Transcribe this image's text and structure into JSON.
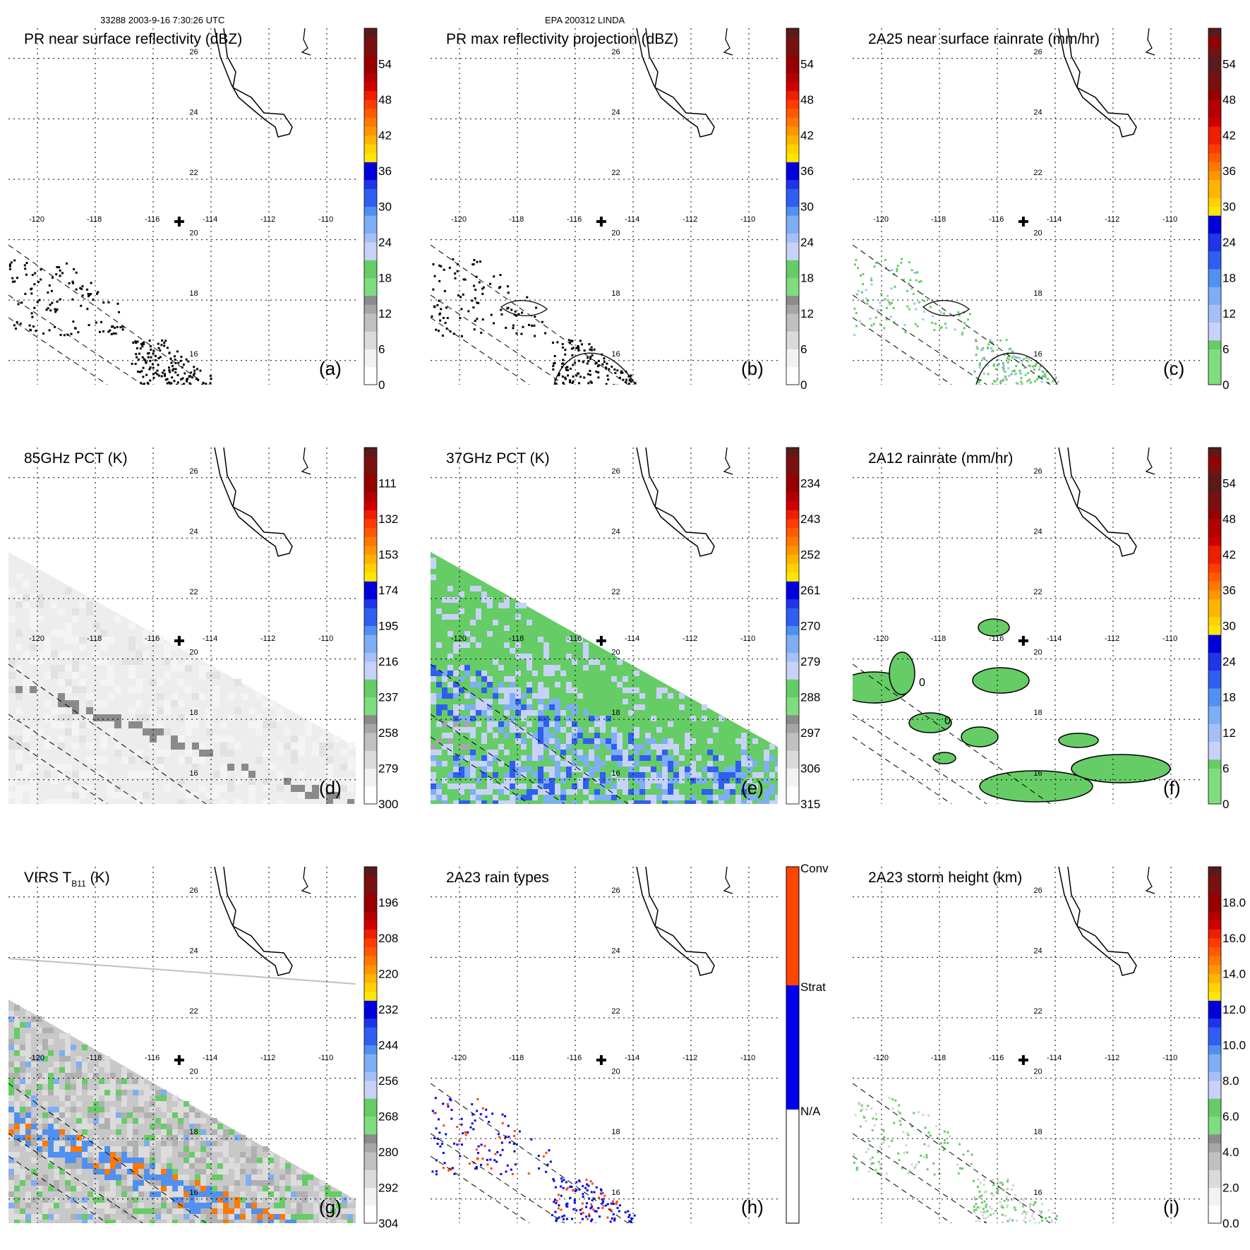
{
  "header": {
    "left": "33288 2003-9-16 7:30:26 UTC",
    "center": "EPA 200312 LINDA"
  },
  "map": {
    "lon_ticks": [
      "-120",
      "-118",
      "-116",
      "-114",
      "-112",
      "-110"
    ],
    "lat_ticks": [
      "26",
      "24",
      "22",
      "20",
      "18",
      "16"
    ]
  },
  "panels": [
    {
      "id": "a",
      "title": "PR near surface reflectivity (dBZ)",
      "letter": "(a)",
      "colorbar": {
        "type": "continuous",
        "ticks": [
          "54",
          "48",
          "42",
          "36",
          "30",
          "24",
          "18",
          "12",
          "6",
          "0"
        ]
      }
    },
    {
      "id": "b",
      "title": "PR max reflectivity projection (dBZ)",
      "letter": "(b)",
      "colorbar": {
        "type": "continuous",
        "ticks": [
          "54",
          "48",
          "42",
          "36",
          "30",
          "24",
          "18",
          "12",
          "6",
          "0"
        ]
      }
    },
    {
      "id": "c",
      "title": "2A25 near surface rainrate (mm/hr)",
      "letter": "(c)",
      "colorbar": {
        "type": "continuous",
        "ticks": [
          "54",
          "48",
          "42",
          "36",
          "30",
          "24",
          "18",
          "12",
          "6",
          "0"
        ]
      }
    },
    {
      "id": "d",
      "title": "85GHz PCT (K)",
      "letter": "(d)",
      "colorbar": {
        "type": "continuous",
        "ticks": [
          "111",
          "132",
          "153",
          "174",
          "195",
          "216",
          "237",
          "258",
          "279",
          "300"
        ]
      }
    },
    {
      "id": "e",
      "title": "37GHz PCT (K)",
      "letter": "(e)",
      "colorbar": {
        "type": "continuous",
        "ticks": [
          "234",
          "243",
          "252",
          "261",
          "270",
          "279",
          "288",
          "297",
          "306",
          "315"
        ]
      }
    },
    {
      "id": "f",
      "title": "2A12 rainrate (mm/hr)",
      "letter": "(f)",
      "colorbar": {
        "type": "continuous",
        "ticks": [
          "54",
          "48",
          "42",
          "36",
          "30",
          "24",
          "18",
          "12",
          "6",
          "0"
        ]
      }
    },
    {
      "id": "g",
      "title": "VIRS T",
      "title_sub": "B11",
      "title_suffix": " (K)",
      "letter": "(g)",
      "colorbar": {
        "type": "continuous",
        "ticks": [
          "196",
          "208",
          "220",
          "232",
          "244",
          "256",
          "268",
          "280",
          "292",
          "304"
        ]
      }
    },
    {
      "id": "h",
      "title": "2A23 rain types",
      "letter": "(h)",
      "colorbar": {
        "type": "categorical",
        "ticks": [
          "Conv",
          "Strat",
          "N/A"
        ]
      }
    },
    {
      "id": "i",
      "title": "2A23 storm height (km)",
      "letter": "(i)",
      "colorbar": {
        "type": "continuous",
        "ticks": [
          "18.0",
          "16.0",
          "14.0",
          "12.0",
          "10.0",
          "8.0",
          "6.0",
          "4.0",
          "2.0",
          "0.0"
        ]
      }
    }
  ],
  "chart_data": [
    {
      "type": "heatmap",
      "panel": "a",
      "title": "PR near surface reflectivity (dBZ)",
      "units": "dBZ",
      "colorbar_range": [
        0,
        60
      ],
      "xlabel": "",
      "ylabel": "",
      "xlim": [
        -121,
        -109
      ],
      "ylim": [
        15.2,
        27
      ]
    },
    {
      "type": "heatmap",
      "panel": "b",
      "title": "PR max reflectivity projection (dBZ)",
      "units": "dBZ",
      "colorbar_range": [
        0,
        60
      ],
      "xlim": [
        -121,
        -109
      ],
      "ylim": [
        15.2,
        27
      ]
    },
    {
      "type": "heatmap",
      "panel": "c",
      "title": "2A25 near surface rainrate (mm/hr)",
      "units": "mm/hr",
      "colorbar_range": [
        0,
        60
      ],
      "xlim": [
        -121,
        -109
      ],
      "ylim": [
        15.2,
        27
      ]
    },
    {
      "type": "heatmap",
      "panel": "d",
      "title": "85GHz PCT (K)",
      "units": "K",
      "colorbar_range": [
        90,
        300
      ],
      "xlim": [
        -121,
        -109
      ],
      "ylim": [
        15.2,
        27
      ]
    },
    {
      "type": "heatmap",
      "panel": "e",
      "title": "37GHz PCT (K)",
      "units": "K",
      "colorbar_range": [
        225,
        315
      ],
      "xlim": [
        -121,
        -109
      ],
      "ylim": [
        15.2,
        27
      ]
    },
    {
      "type": "heatmap",
      "panel": "f",
      "title": "2A12 rainrate (mm/hr)",
      "units": "mm/hr",
      "colorbar_range": [
        0,
        60
      ],
      "xlim": [
        -121,
        -109
      ],
      "ylim": [
        15.2,
        27
      ],
      "contour_label": "0"
    },
    {
      "type": "heatmap",
      "panel": "g",
      "title": "VIRS T B11 (K)",
      "units": "K",
      "colorbar_range": [
        184,
        304
      ],
      "xlim": [
        -121,
        -109
      ],
      "ylim": [
        15.2,
        27
      ]
    },
    {
      "type": "heatmap",
      "panel": "h",
      "title": "2A23 rain types",
      "categories": [
        "Conv",
        "Strat",
        "N/A"
      ],
      "category_colors": [
        "#ff4500",
        "#0000ee",
        "#ffffff"
      ],
      "xlim": [
        -121,
        -109
      ],
      "ylim": [
        15.2,
        27
      ]
    },
    {
      "type": "heatmap",
      "panel": "i",
      "title": "2A23 storm height (km)",
      "units": "km",
      "colorbar_range": [
        0,
        20
      ],
      "xlim": [
        -121,
        -109
      ],
      "ylim": [
        15.2,
        27
      ]
    }
  ],
  "colors": {
    "scale": [
      "#ffffff",
      "#f2f2f2",
      "#dadada",
      "#c0c0c0",
      "#a6a6a6",
      "#8c8c8c",
      "#7fdc7f",
      "#66cc66",
      "#c8d2f8",
      "#a4c0f6",
      "#7eaef4",
      "#5090f0",
      "#2f5ef0",
      "#1e35e8",
      "#0000dc",
      "#ffe600",
      "#ffd200",
      "#ffb400",
      "#ff9600",
      "#ff7800",
      "#ff5a00",
      "#ff3c00",
      "#ee1e00",
      "#d00000",
      "#b40000",
      "#960000",
      "#7a1010",
      "#5a1a1a"
    ],
    "grid": "#000000",
    "coast": "#000000"
  }
}
